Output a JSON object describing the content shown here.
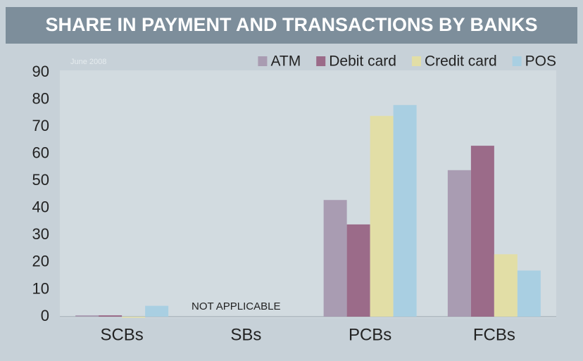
{
  "chart_data": {
    "type": "bar",
    "title": "SHARE IN PAYMENT AND TRANSACTIONS BY BANKS",
    "subtitle": "June 2008",
    "annotation": "NOT APPLICABLE",
    "categories": [
      "SCBs",
      "SBs",
      "PCBs",
      "FCBs"
    ],
    "series": [
      {
        "name": "ATM",
        "color": "#a99cb2",
        "values": [
          0.5,
          null,
          43,
          54
        ]
      },
      {
        "name": "Debit card",
        "color": "#9b6b89",
        "values": [
          0.5,
          null,
          34,
          63
        ]
      },
      {
        "name": "Credit card",
        "color": "#e2dea6",
        "values": [
          0,
          null,
          74,
          23
        ]
      },
      {
        "name": "POS",
        "color": "#a9cfe2",
        "values": [
          4,
          null,
          78,
          17
        ]
      }
    ],
    "ylim": [
      0,
      90
    ],
    "yticks": [
      0,
      10,
      20,
      30,
      40,
      50,
      60,
      70,
      80,
      90
    ],
    "grid": false,
    "legend": "top-right"
  }
}
